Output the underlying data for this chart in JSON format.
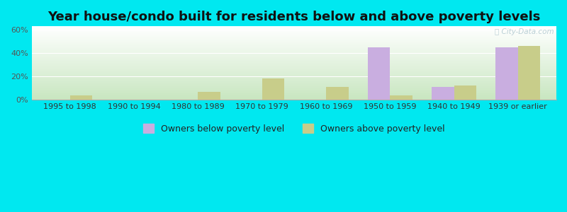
{
  "title": "Year house/condo built for residents below and above poverty levels",
  "categories": [
    "1995 to 1998",
    "1990 to 1994",
    "1980 to 1989",
    "1970 to 1979",
    "1960 to 1969",
    "1950 to 1959",
    "1940 to 1949",
    "1939 or earlier"
  ],
  "below_poverty": [
    0,
    0,
    0,
    0,
    0,
    45,
    11,
    45
  ],
  "above_poverty": [
    4,
    0,
    7,
    18,
    11,
    4,
    12,
    46
  ],
  "below_color": "#c9aee0",
  "above_color": "#c8cd8a",
  "outer_bg": "#00e8f0",
  "ylim": [
    0,
    63
  ],
  "yticks": [
    0,
    20,
    40,
    60
  ],
  "ytick_labels": [
    "0%",
    "20%",
    "40%",
    "60%"
  ],
  "legend_below": "Owners below poverty level",
  "legend_above": "Owners above poverty level",
  "bar_width": 0.35,
  "title_fontsize": 13,
  "tick_fontsize": 8,
  "legend_fontsize": 9
}
